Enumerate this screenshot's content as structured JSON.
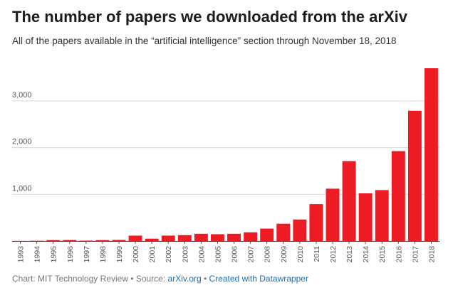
{
  "chart_data": {
    "type": "bar",
    "title": "The number of papers we downloaded from the arXiv",
    "subtitle": "All of the papers available in the “artificial intelligence” section through November 18, 2018",
    "xlabel": "",
    "ylabel": "",
    "categories": [
      "1993",
      "1994",
      "1995",
      "1996",
      "1997",
      "1998",
      "1999",
      "2000",
      "2001",
      "2002",
      "2003",
      "2004",
      "2005",
      "2006",
      "2007",
      "2008",
      "2009",
      "2010",
      "2011",
      "2012",
      "2013",
      "2014",
      "2015",
      "2016",
      "2017",
      "2018"
    ],
    "values": [
      2,
      5,
      18,
      20,
      8,
      18,
      22,
      115,
      50,
      115,
      125,
      155,
      145,
      155,
      185,
      265,
      370,
      460,
      790,
      1120,
      1710,
      1020,
      1090,
      1925,
      2790,
      3700
    ],
    "ylim": [
      0,
      3700
    ],
    "yticks": [
      1000,
      2000,
      3000
    ],
    "ytick_labels": [
      "1,000",
      "2,000",
      "3,000"
    ],
    "grid": true,
    "bar_color": "#ec1b24"
  },
  "footer": {
    "prefix": "Chart: MIT Technology Review • Source: ",
    "source_link": "arXiv.org",
    "separator": " • ",
    "credit_link": "Created with Datawrapper"
  }
}
